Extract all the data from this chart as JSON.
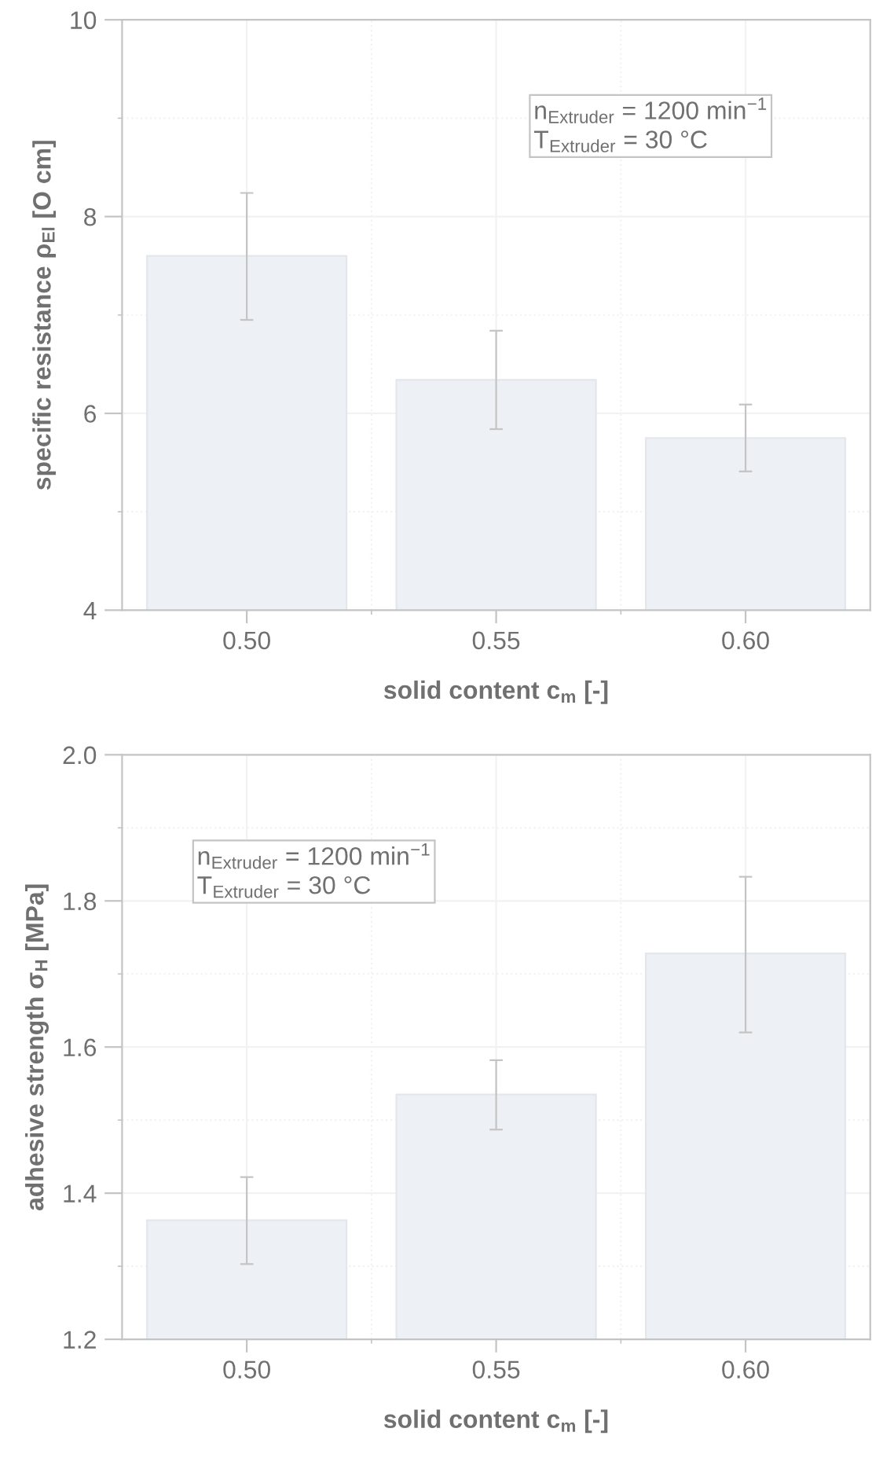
{
  "chart_data": [
    {
      "type": "bar",
      "categories": [
        "0.50",
        "0.55",
        "0.60"
      ],
      "values": [
        7.6,
        6.34,
        5.75
      ],
      "color": "#edf0f4",
      "errors": [
        [
          6.95,
          8.24
        ],
        [
          5.84,
          6.84
        ],
        [
          5.41,
          6.09
        ]
      ],
      "xlabel": "solid content c$_{m}$ [-]",
      "ylabel": "specific resistance ρ$_{El}$ [O cm]",
      "ylim": [
        4,
        10
      ],
      "yticks": [
        4,
        6,
        8,
        10
      ],
      "grid": true,
      "annotations": [
        "n$_{Extruder}$ = 1200 min$^{−1}$\nT$_{Extruder}$ = 30 °C"
      ]
    },
    {
      "type": "bar",
      "categories": [
        "0.50",
        "0.55",
        "0.60"
      ],
      "values": [
        1.363,
        1.535,
        1.728
      ],
      "color": "#edf0f4",
      "errors": [
        [
          1.303,
          1.422
        ],
        [
          1.487,
          1.582
        ],
        [
          1.62,
          1.833
        ]
      ],
      "xlabel": "solid content c$_{m}$ [-]",
      "ylabel": "adhesive strength σ$_{H}$ [MPa]",
      "ylim": [
        1.2,
        2.0
      ],
      "yticks": [
        {
          "value": 1.2,
          "label": "1.2"
        },
        {
          "value": 1.4,
          "label": "1.4"
        },
        {
          "value": 1.6,
          "label": "1.6"
        },
        {
          "value": 1.8,
          "label": "1.8"
        },
        {
          "value": 2.0,
          "label": "2.0"
        }
      ],
      "grid": true,
      "annotations": [
        "n$_{Extruder}$ = 1200 min$^{−1}$\nT$_{Extruder}$ = 30 °C"
      ]
    }
  ]
}
